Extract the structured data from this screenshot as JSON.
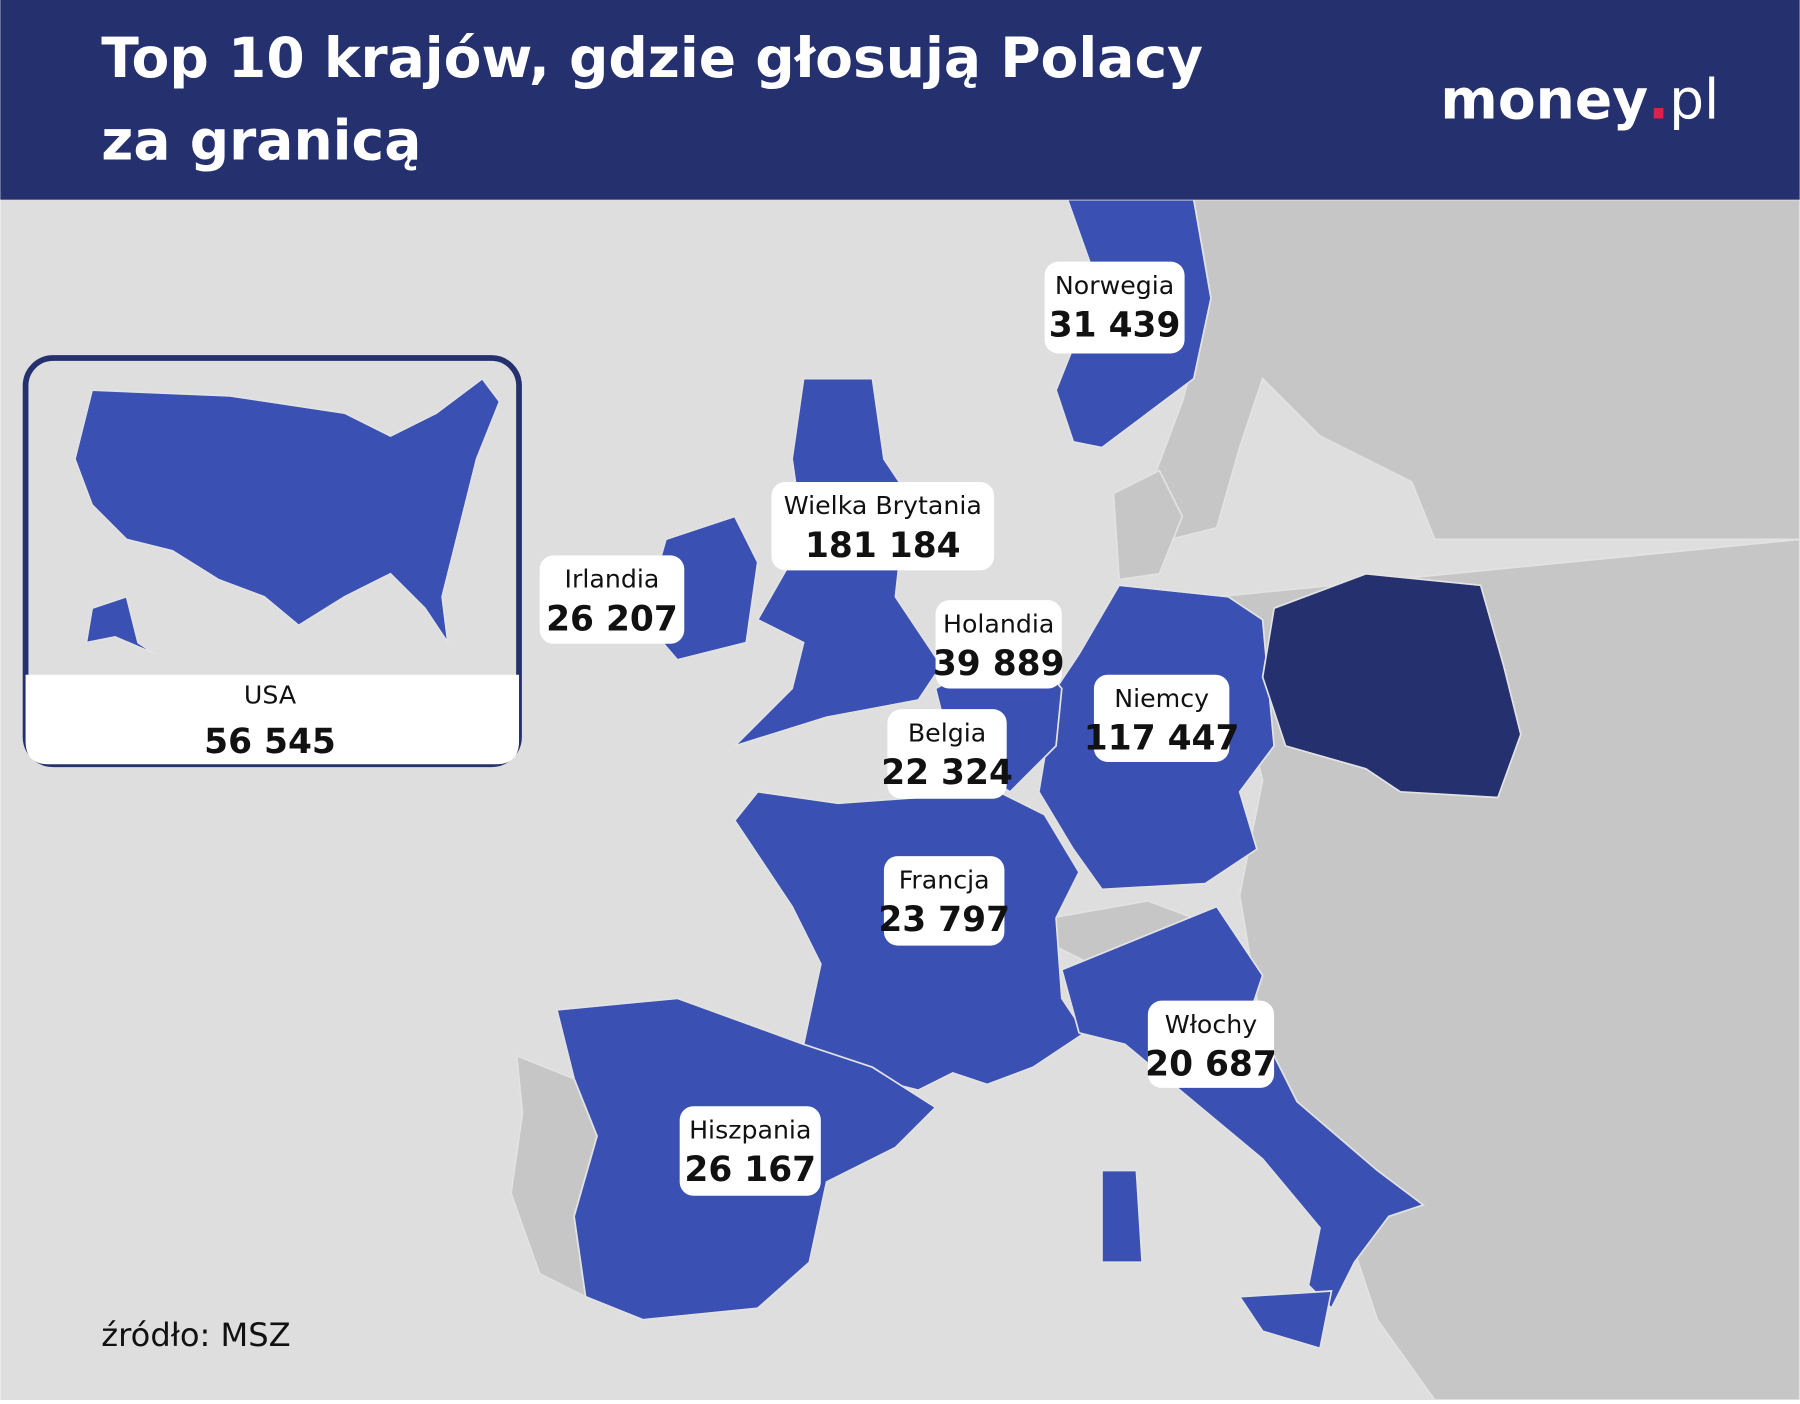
{
  "header": {
    "title_lines": [
      "Top 10 krajów, gdzie głosują Polacy",
      "za granicą"
    ],
    "logo": {
      "brand": "money",
      "dot": ".",
      "domain": "pl"
    }
  },
  "labels": [
    {
      "country": "Norwegia",
      "value": "31 439"
    },
    {
      "country": "Wielka Brytania",
      "value": "181 184"
    },
    {
      "country": "Irlandia",
      "value": "26 207"
    },
    {
      "country": "Holandia",
      "value": "39 889"
    },
    {
      "country": "Niemcy",
      "value": "117 447"
    },
    {
      "country": "Belgia",
      "value": "22 324"
    },
    {
      "country": "Francja",
      "value": "23 797"
    },
    {
      "country": "Włochy",
      "value": "20 687"
    },
    {
      "country": "Hiszpania",
      "value": "26 167"
    }
  ],
  "inset": {
    "country": "USA",
    "value": "56 545"
  },
  "source": "źródło: MSZ"
}
